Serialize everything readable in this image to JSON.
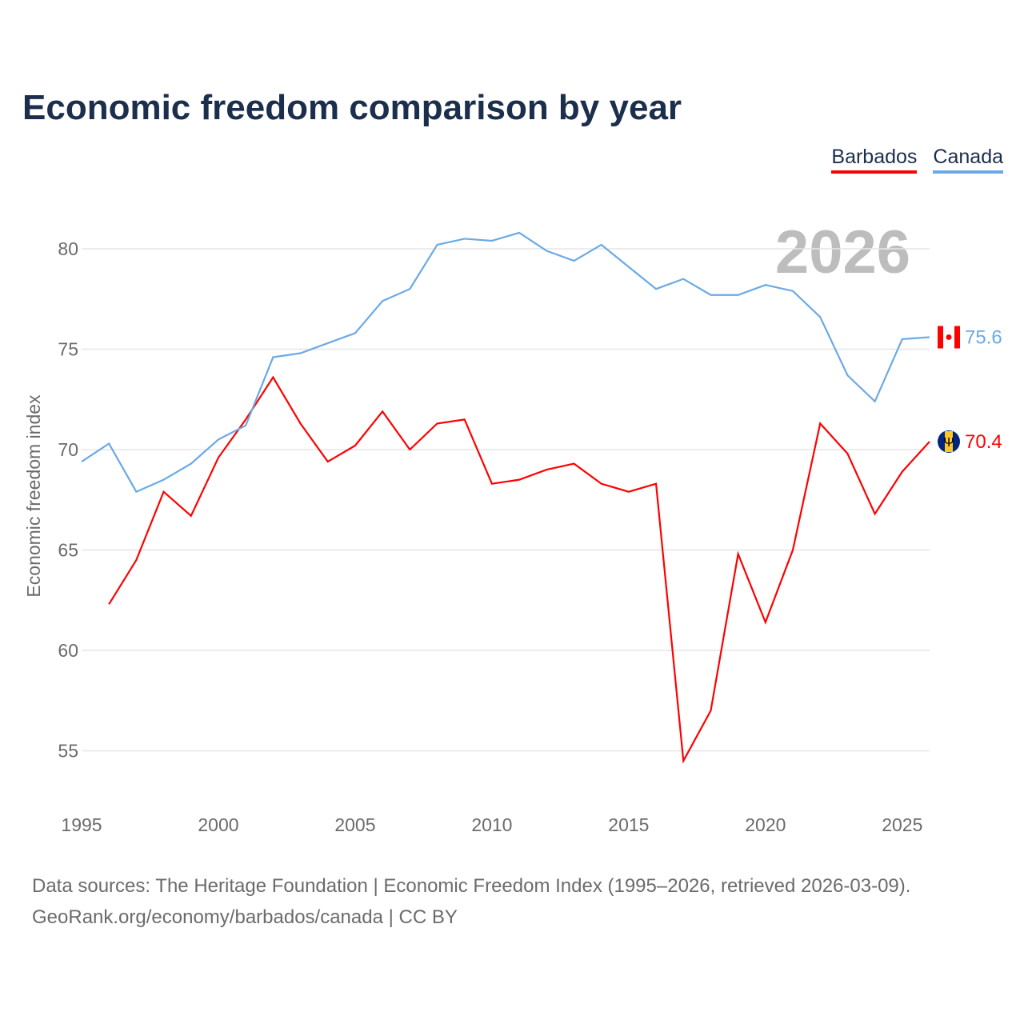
{
  "title": "Economic freedom comparison by year",
  "legend": [
    {
      "label": "Barbados",
      "color": "#ff0000"
    },
    {
      "label": "Canada",
      "color": "#6aa9e6"
    }
  ],
  "year_watermark": "2026",
  "source_line1": "Data sources: The Heritage Foundation | Economic Freedom Index (1995–2026, retrieved 2026-03-09).",
  "source_line2": "GeoRank.org/economy/barbados/canada | CC BY",
  "chart_data": {
    "type": "line",
    "title": "Economic freedom comparison by year",
    "xlabel": "",
    "ylabel": "Economic freedom index",
    "xlim": [
      1995,
      2026
    ],
    "ylim": [
      52.5,
      82.5
    ],
    "xticks": [
      "1995",
      "2000",
      "2005",
      "2010",
      "2015",
      "2020",
      "2025"
    ],
    "yticks": [
      "55",
      "60",
      "65",
      "70",
      "75",
      "80"
    ],
    "grid": true,
    "legend_position": "top-right",
    "series": [
      {
        "name": "Barbados",
        "color": "#ff0000",
        "end_label": "70.4",
        "x": [
          1996,
          1997,
          1998,
          1999,
          2000,
          2001,
          2002,
          2003,
          2004,
          2005,
          2006,
          2007,
          2008,
          2009,
          2010,
          2011,
          2012,
          2013,
          2014,
          2015,
          2016,
          2017,
          2018,
          2019,
          2020,
          2021,
          2022,
          2023,
          2024,
          2025,
          2026
        ],
        "values": [
          62.3,
          64.5,
          67.9,
          66.7,
          69.6,
          71.5,
          73.6,
          71.3,
          69.4,
          70.2,
          71.9,
          70.0,
          71.3,
          71.5,
          68.3,
          68.5,
          69.0,
          69.3,
          68.3,
          67.9,
          68.3,
          54.5,
          57.0,
          64.8,
          61.4,
          65.0,
          71.3,
          69.8,
          66.8,
          68.9,
          70.4
        ]
      },
      {
        "name": "Canada",
        "color": "#6aa9e6",
        "end_label": "75.6",
        "x": [
          1995,
          1996,
          1997,
          1998,
          1999,
          2000,
          2001,
          2002,
          2003,
          2004,
          2005,
          2006,
          2007,
          2008,
          2009,
          2010,
          2011,
          2012,
          2013,
          2014,
          2015,
          2016,
          2017,
          2018,
          2019,
          2020,
          2021,
          2022,
          2023,
          2024,
          2025,
          2026
        ],
        "values": [
          69.4,
          70.3,
          67.9,
          68.5,
          69.3,
          70.5,
          71.2,
          74.6,
          74.8,
          75.3,
          75.8,
          77.4,
          78.0,
          80.2,
          80.5,
          80.4,
          80.8,
          79.9,
          79.4,
          80.2,
          79.1,
          78.0,
          78.5,
          77.7,
          77.7,
          78.2,
          77.9,
          76.6,
          73.7,
          72.4,
          75.5,
          75.6
        ]
      }
    ]
  }
}
